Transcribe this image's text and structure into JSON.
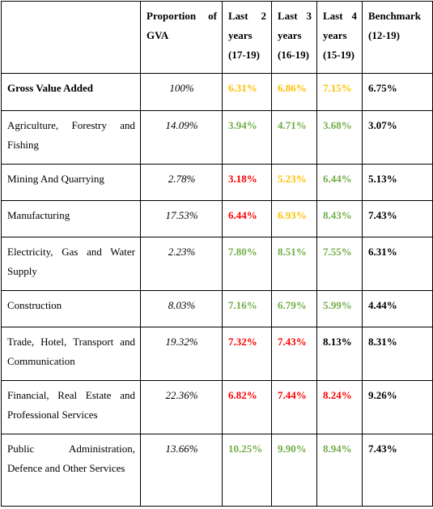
{
  "table": {
    "header": [
      "Proportion of GVA",
      "Last 2 years (17-19)",
      "Last 3 years (16-19)",
      "Last 4 years (15-19)",
      "Benchmark (12-19)"
    ],
    "rows": [
      {
        "label": "Gross Value Added",
        "share": "100%",
        "values": [
          "6.31%",
          "6.86%",
          "7.15%"
        ],
        "colors": [
          "#ffc000",
          "#ffc000",
          "#ffc000"
        ],
        "benchmark": "6.75%"
      },
      {
        "label": "Agriculture, Forestry and Fishing",
        "share": "14.09%",
        "values": [
          "3.94%",
          "4.71%",
          "3.68%"
        ],
        "colors": [
          "#70ad47",
          "#70ad47",
          "#70ad47"
        ],
        "benchmark": "3.07%"
      },
      {
        "label": "Mining And Quarrying",
        "share": "2.78%",
        "values": [
          "3.18%",
          "5.23%",
          "6.44%"
        ],
        "colors": [
          "#ff0000",
          "#ffc000",
          "#70ad47"
        ],
        "benchmark": "5.13%"
      },
      {
        "label": "Manufacturing",
        "share": "17.53%",
        "values": [
          "6.44%",
          "6.93%",
          "8.43%"
        ],
        "colors": [
          "#ff0000",
          "#ffc000",
          "#70ad47"
        ],
        "benchmark": "7.43%"
      },
      {
        "label": "Electricity, Gas and Water Supply",
        "share": "2.23%",
        "values": [
          "7.80%",
          "8.51%",
          "7.55%"
        ],
        "colors": [
          "#70ad47",
          "#70ad47",
          "#70ad47"
        ],
        "benchmark": "6.31%"
      },
      {
        "label": "Construction",
        "share": "8.03%",
        "values": [
          "7.16%",
          "6.79%",
          "5.99%"
        ],
        "colors": [
          "#70ad47",
          "#70ad47",
          "#70ad47"
        ],
        "benchmark": "4.44%"
      },
      {
        "label": "Trade, Hotel, Transport and Communication",
        "share": "19.32%",
        "values": [
          "7.32%",
          "7.43%",
          "8.13%"
        ],
        "colors": [
          "#ff0000",
          "#ff0000",
          "#000000"
        ],
        "benchmark": "8.31%"
      },
      {
        "label": "Financial, Real Estate and Professional Services",
        "share": "22.36%",
        "values": [
          "6.82%",
          "7.44%",
          "8.24%"
        ],
        "colors": [
          "#ff0000",
          "#ff0000",
          "#ff0000"
        ],
        "benchmark": "9.26%"
      },
      {
        "label": "Public Administration, Defence and Other Services",
        "share": "13.66%",
        "values": [
          "10.25%",
          "9.90%",
          "8.94%"
        ],
        "colors": [
          "#70ad47",
          "#70ad47",
          "#70ad47"
        ],
        "benchmark": "7.43%"
      }
    ]
  }
}
